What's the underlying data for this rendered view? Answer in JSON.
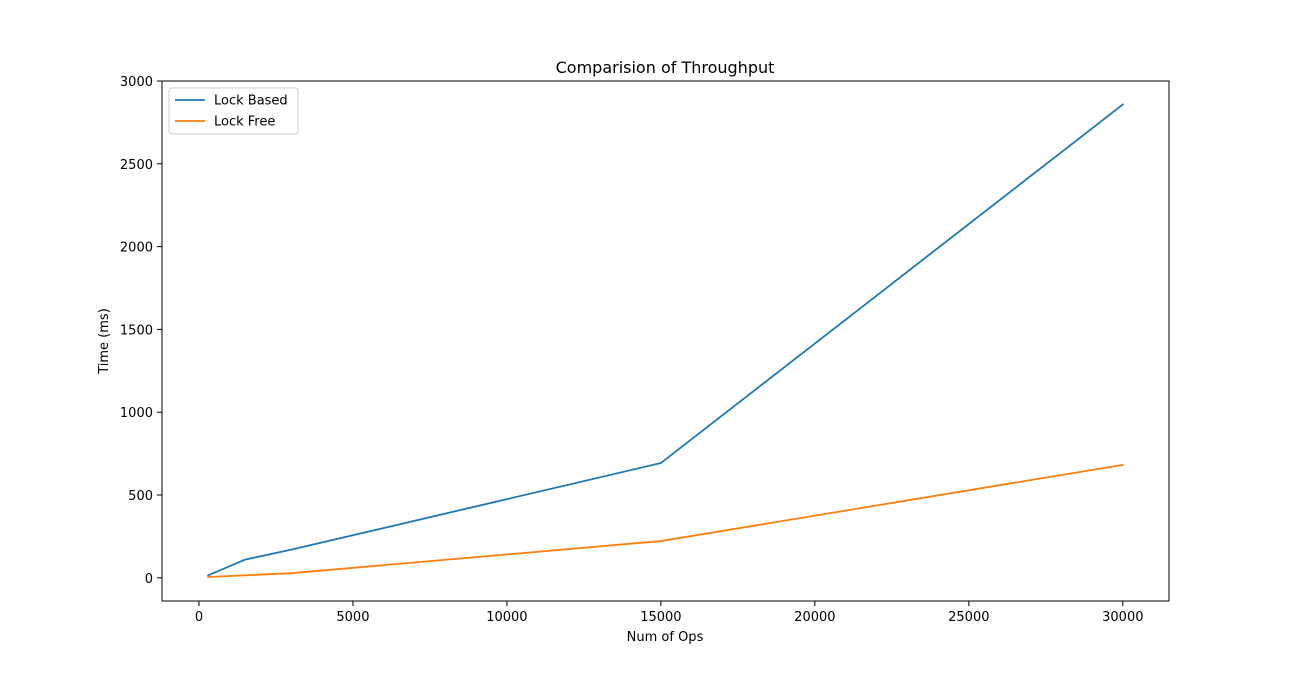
{
  "chart_data": {
    "type": "line",
    "title": "Comparision of Throughput",
    "xlabel": "Num of Ops",
    "ylabel": "Time (ms)",
    "xlim": [
      -1200,
      31500
    ],
    "ylim": [
      -140,
      3000
    ],
    "x_ticks": [
      0,
      5000,
      10000,
      15000,
      20000,
      25000,
      30000
    ],
    "y_ticks": [
      0,
      500,
      1000,
      1500,
      2000,
      2500,
      3000
    ],
    "grid": false,
    "legend_position": "top-left",
    "series": [
      {
        "name": "Lock Based",
        "color": "#1f77b4",
        "x": [
          300,
          1500,
          3000,
          15000,
          30000
        ],
        "y": [
          15,
          110,
          170,
          693,
          2858
        ]
      },
      {
        "name": "Lock Free",
        "color": "#ff7f0e",
        "x": [
          300,
          1500,
          3000,
          15000,
          30000
        ],
        "y": [
          5,
          15,
          28,
          222,
          682
        ]
      }
    ]
  }
}
